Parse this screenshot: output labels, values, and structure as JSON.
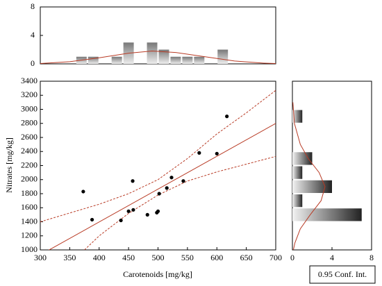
{
  "chart_data": [
    {
      "type": "scatter",
      "xlabel": "Carotenoids [mg/kg]",
      "ylabel": "Nitrates [mg/kg]",
      "x": [
        373,
        388,
        437,
        450,
        457,
        458,
        482,
        498,
        500,
        502,
        515,
        523,
        543,
        570,
        600,
        617
      ],
      "y": [
        1830,
        1430,
        1420,
        1550,
        1980,
        1570,
        1500,
        1530,
        1550,
        1800,
        1880,
        2030,
        1980,
        2380,
        2370,
        2900
      ],
      "xlim": [
        300,
        700
      ],
      "ylim": [
        1000,
        3400
      ],
      "xticks": [
        300,
        350,
        400,
        450,
        500,
        550,
        600,
        650,
        700
      ],
      "yticks": [
        1000,
        1200,
        1400,
        1600,
        1800,
        2000,
        2200,
        2400,
        2600,
        2800,
        3000,
        3200,
        3400
      ],
      "color": "#000000",
      "line_color": "#b83a24",
      "fit": {
        "x": [
          300,
          700
        ],
        "y": [
          930,
          2800
        ]
      },
      "conf_upper": {
        "x": [
          300,
          400,
          450,
          500,
          550,
          600,
          650,
          700
        ],
        "y": [
          1400,
          1650,
          1800,
          2000,
          2300,
          2650,
          2950,
          3270
        ]
      },
      "conf_lower": {
        "x": [
          375,
          400,
          450,
          500,
          550,
          600,
          650,
          700
        ],
        "y": [
          1000,
          1200,
          1520,
          1780,
          1980,
          2110,
          2220,
          2330
        ]
      },
      "legend": "0.95 Conf. Int."
    },
    {
      "type": "histogram",
      "orientation": "vertical",
      "bins": [
        360,
        380,
        400,
        420,
        440,
        460,
        480,
        500,
        520,
        540,
        560,
        580,
        600,
        620
      ],
      "counts": [
        1,
        1,
        0,
        1,
        3,
        0,
        3,
        2,
        1,
        1,
        1,
        0,
        2
      ],
      "xlim": [
        300,
        700
      ],
      "ylim": [
        0,
        8
      ],
      "yticks": [
        0,
        4,
        8
      ],
      "curve": {
        "x": [
          300,
          350,
          400,
          450,
          490,
          530,
          580,
          630,
          680,
          700
        ],
        "y": [
          0.05,
          0.3,
          0.85,
          1.5,
          1.8,
          1.6,
          1.0,
          0.4,
          0.1,
          0.05
        ]
      }
    },
    {
      "type": "histogram",
      "orientation": "horizontal",
      "bins": [
        1400,
        1600,
        1800,
        2000,
        2200,
        2400,
        2600,
        2800,
        3000
      ],
      "counts": [
        7,
        1,
        4,
        1,
        2,
        0,
        0,
        1
      ],
      "xlim": [
        0,
        8
      ],
      "xticks": [
        0,
        4,
        8
      ],
      "ylim": [
        1000,
        3400
      ],
      "curve": {
        "x": [
          0.05,
          0.2,
          0.8,
          1.6,
          2.7,
          3.3,
          2.9,
          1.8,
          0.8,
          0.25,
          0.1
        ],
        "y": [
          3100,
          2800,
          2500,
          2300,
          2100,
          1900,
          1700,
          1500,
          1300,
          1100,
          1000
        ]
      }
    }
  ]
}
